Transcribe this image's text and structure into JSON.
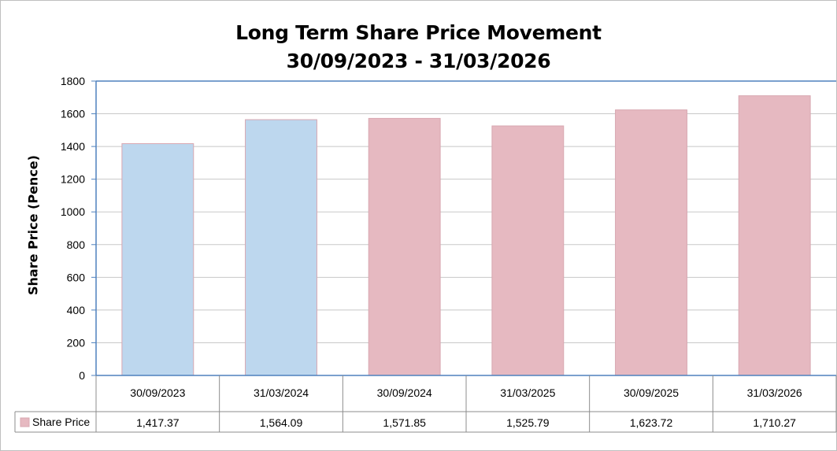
{
  "chart_data": {
    "type": "bar",
    "title": "Long Term Share Price Movement",
    "subtitle": "30/09/2023 - 31/03/2026",
    "ylabel": "Share Price (Pence)",
    "xlabel": "",
    "ylim": [
      0,
      1800
    ],
    "yticks": [
      0,
      200,
      400,
      600,
      800,
      1000,
      1200,
      1400,
      1600,
      1800
    ],
    "grid": true,
    "legend_position": "data-table",
    "categories": [
      "30/09/2023",
      "31/03/2024",
      "30/09/2024",
      "31/03/2025",
      "30/09/2025",
      "31/03/2026"
    ],
    "series": [
      {
        "name": "Share Price",
        "values": [
          1417.37,
          1564.09,
          1571.85,
          1525.79,
          1623.72,
          1710.27
        ],
        "labels": [
          "1,417.37",
          "1,564.09",
          "1,571.85",
          "1,525.79",
          "1,623.72",
          "1,710.27"
        ],
        "bar_colors": [
          "#bdd7ee",
          "#bdd7ee",
          "#e6b9c1",
          "#e6b9c1",
          "#e6b9c1",
          "#e6b9c1"
        ],
        "legend_color": "#e6b9c1"
      }
    ]
  },
  "colors": {
    "axis_line": "#4f81bd",
    "gridline": "#c8c8c8",
    "table_border": "#8c8c8c",
    "bar_outline": "#d8a7b1"
  }
}
